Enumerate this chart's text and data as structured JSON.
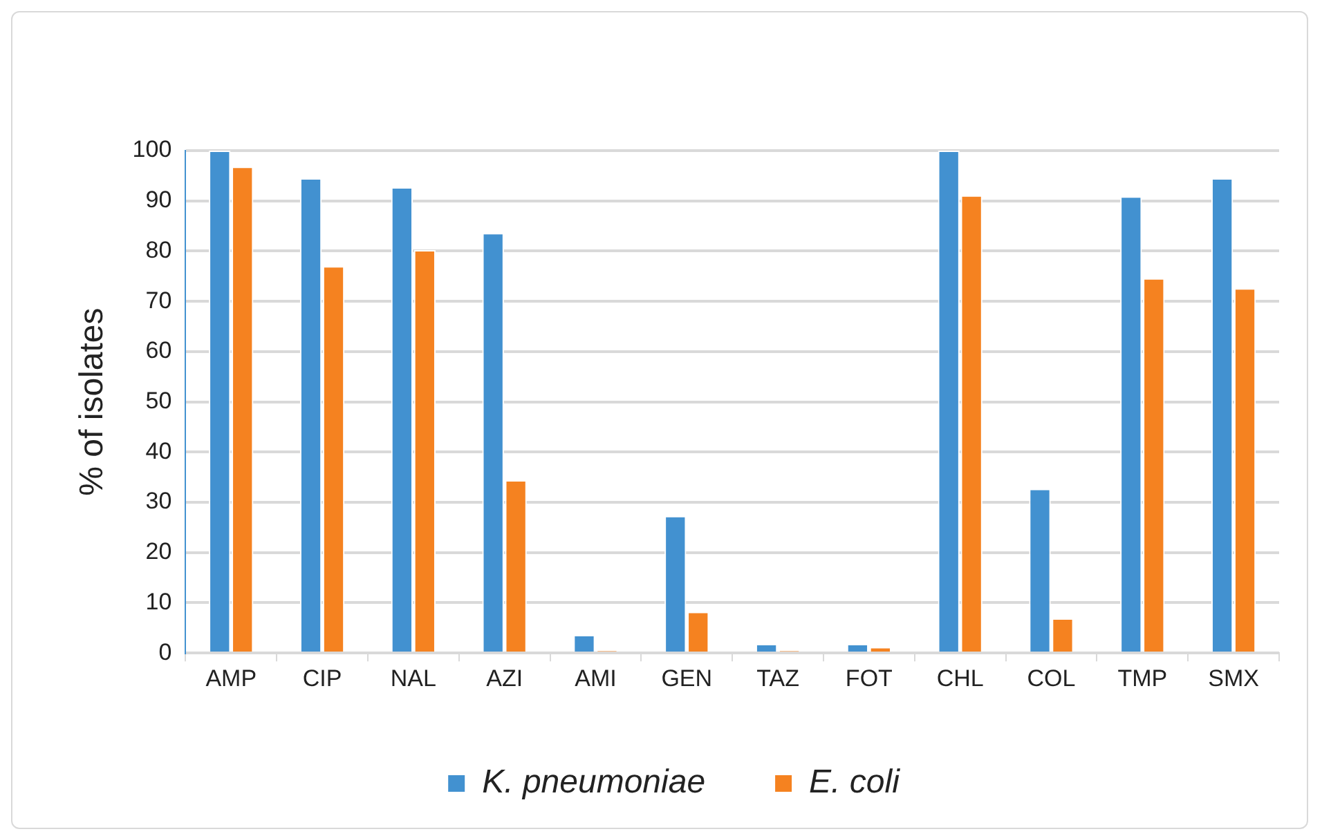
{
  "chart_data": {
    "type": "bar",
    "ylabel": "% of isolates",
    "categories": [
      "AMP",
      "CIP",
      "NAL",
      "AZI",
      "AMI",
      "GEN",
      "TAZ",
      "FOT",
      "CHL",
      "COL",
      "TMP",
      "SMX"
    ],
    "series": [
      {
        "name": "K. pneumoniae",
        "color": "#4291d0",
        "values": [
          100,
          94.5,
          92.7,
          83.6,
          3.6,
          27.3,
          1.8,
          1.8,
          100,
          32.7,
          90.9,
          94.5
        ]
      },
      {
        "name": "E. coli",
        "color": "#f58220",
        "values": [
          96.8,
          77,
          80.2,
          34.4,
          0.5,
          8.2,
          0.5,
          1.2,
          91.1,
          6.9,
          74.6,
          72.6
        ]
      }
    ],
    "ylim": [
      0,
      100
    ],
    "yticks": [
      0,
      10,
      20,
      30,
      40,
      50,
      60,
      70,
      80,
      90,
      100
    ],
    "grid": "y",
    "legend": "bottom"
  }
}
